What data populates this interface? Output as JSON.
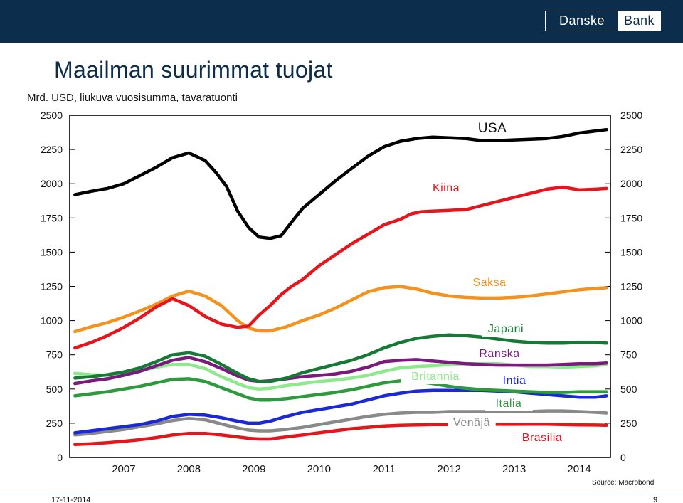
{
  "logo": {
    "left": "Danske",
    "right": "Bank"
  },
  "page_title": "Maailman suurimmat tuojat",
  "source": "Source: Macrobond",
  "footer": {
    "date": "17-11-2014",
    "page_number": "9"
  },
  "colors": {
    "background": "#ffffff",
    "header": "#0c2d4c",
    "USA": "#000000",
    "Kiina": "#e8141b",
    "Saksa": "#f5921e",
    "Japani": "#157a35",
    "Ranska": "#7b1a7d",
    "Britannia": "#8ee88c",
    "Intia": "#1a28d6",
    "Italia": "#2e9a3e",
    "Venäjä": "#898989",
    "Brasilia": "#e8141b"
  },
  "chart_data": {
    "type": "line",
    "title": "Mrd. USD, liukuva vuosisumma, tavaratuonti",
    "xlabel": "",
    "ylabel": "",
    "x_range": [
      2006.42,
      2014.73
    ],
    "ylim": [
      0,
      2500
    ],
    "y_ticks": [
      0,
      250,
      500,
      750,
      1000,
      1250,
      1500,
      1750,
      2000,
      2250,
      2500
    ],
    "y_tick_labels": [
      "0",
      "250",
      "500",
      "750",
      "1000",
      "1250",
      "1500",
      "1750",
      "2000",
      "2250",
      "2500"
    ],
    "x_ticks": [
      2007.25,
      2008.25,
      2009.25,
      2010.25,
      2011.25,
      2012.25,
      2013.25,
      2014.25
    ],
    "x_tick_labels": [
      "2007",
      "2008",
      "2009",
      "2010",
      "2011",
      "2012",
      "2013",
      "2014"
    ],
    "grid": false,
    "series": [
      {
        "name": "USA",
        "label": "USA",
        "x": [
          2006.5,
          2006.75,
          2007.0,
          2007.25,
          2007.5,
          2007.75,
          2008.0,
          2008.25,
          2008.5,
          2008.67,
          2008.83,
          2009.0,
          2009.17,
          2009.33,
          2009.5,
          2009.67,
          2009.83,
          2010.0,
          2010.25,
          2010.5,
          2010.75,
          2011.0,
          2011.25,
          2011.5,
          2011.75,
          2012.0,
          2012.25,
          2012.5,
          2012.75,
          2013.0,
          2013.25,
          2013.5,
          2013.75,
          2014.0,
          2014.25,
          2014.5,
          2014.67
        ],
        "values": [
          1920,
          1945,
          1965,
          2000,
          2060,
          2120,
          2190,
          2225,
          2170,
          2080,
          1980,
          1800,
          1680,
          1610,
          1600,
          1620,
          1720,
          1820,
          1920,
          2020,
          2110,
          2200,
          2270,
          2310,
          2330,
          2340,
          2335,
          2330,
          2315,
          2315,
          2320,
          2325,
          2330,
          2345,
          2370,
          2385,
          2395
        ]
      },
      {
        "name": "Kiina",
        "label": "Kiina",
        "x": [
          2006.5,
          2006.75,
          2007.0,
          2007.25,
          2007.5,
          2007.75,
          2008.0,
          2008.25,
          2008.5,
          2008.75,
          2009.0,
          2009.17,
          2009.33,
          2009.5,
          2009.67,
          2009.83,
          2010.0,
          2010.25,
          2010.5,
          2010.75,
          2011.0,
          2011.25,
          2011.5,
          2011.67,
          2011.83,
          2012.0,
          2012.25,
          2012.5,
          2012.75,
          2013.0,
          2013.25,
          2013.5,
          2013.75,
          2014.0,
          2014.25,
          2014.5,
          2014.67
        ],
        "values": [
          800,
          840,
          890,
          950,
          1020,
          1100,
          1160,
          1110,
          1030,
          975,
          950,
          960,
          1040,
          1110,
          1190,
          1250,
          1300,
          1400,
          1480,
          1560,
          1630,
          1700,
          1740,
          1780,
          1795,
          1800,
          1805,
          1810,
          1840,
          1870,
          1900,
          1930,
          1960,
          1975,
          1955,
          1960,
          1965
        ]
      },
      {
        "name": "Saksa",
        "label": "Saksa",
        "x": [
          2006.5,
          2006.75,
          2007.0,
          2007.25,
          2007.5,
          2007.75,
          2008.0,
          2008.25,
          2008.5,
          2008.75,
          2009.0,
          2009.17,
          2009.33,
          2009.5,
          2009.75,
          2010.0,
          2010.25,
          2010.5,
          2010.75,
          2011.0,
          2011.25,
          2011.5,
          2011.75,
          2012.0,
          2012.25,
          2012.5,
          2012.75,
          2013.0,
          2013.25,
          2013.5,
          2013.75,
          2014.0,
          2014.25,
          2014.5,
          2014.67
        ],
        "values": [
          920,
          955,
          985,
          1025,
          1070,
          1120,
          1180,
          1215,
          1180,
          1110,
          1000,
          945,
          925,
          925,
          955,
          1000,
          1040,
          1090,
          1150,
          1210,
          1240,
          1250,
          1230,
          1200,
          1180,
          1170,
          1165,
          1165,
          1170,
          1180,
          1195,
          1210,
          1225,
          1235,
          1240
        ]
      },
      {
        "name": "Japani",
        "label": "Japani",
        "x": [
          2006.5,
          2006.75,
          2007.0,
          2007.25,
          2007.5,
          2007.75,
          2008.0,
          2008.25,
          2008.5,
          2008.75,
          2009.0,
          2009.17,
          2009.33,
          2009.5,
          2009.75,
          2010.0,
          2010.25,
          2010.5,
          2010.75,
          2011.0,
          2011.25,
          2011.5,
          2011.75,
          2012.0,
          2012.25,
          2012.5,
          2012.75,
          2013.0,
          2013.25,
          2013.5,
          2013.75,
          2014.0,
          2014.25,
          2014.5,
          2014.67
        ],
        "values": [
          580,
          590,
          605,
          625,
          655,
          700,
          750,
          765,
          740,
          680,
          615,
          575,
          555,
          555,
          580,
          620,
          650,
          680,
          710,
          750,
          800,
          840,
          870,
          885,
          895,
          890,
          880,
          865,
          850,
          840,
          835,
          835,
          840,
          840,
          835
        ]
      },
      {
        "name": "Ranska",
        "label": "Ranska",
        "x": [
          2006.5,
          2006.75,
          2007.0,
          2007.25,
          2007.5,
          2007.75,
          2008.0,
          2008.25,
          2008.5,
          2008.75,
          2009.0,
          2009.17,
          2009.33,
          2009.5,
          2009.75,
          2010.0,
          2010.25,
          2010.5,
          2010.75,
          2011.0,
          2011.25,
          2011.5,
          2011.75,
          2012.0,
          2012.25,
          2012.5,
          2012.75,
          2013.0,
          2013.25,
          2013.5,
          2013.75,
          2014.0,
          2014.25,
          2014.5,
          2014.67
        ],
        "values": [
          540,
          560,
          575,
          600,
          630,
          670,
          710,
          730,
          700,
          650,
          595,
          565,
          555,
          560,
          575,
          590,
          600,
          610,
          630,
          660,
          700,
          710,
          715,
          705,
          695,
          685,
          680,
          675,
          675,
          675,
          675,
          680,
          685,
          685,
          690
        ]
      },
      {
        "name": "Britannia",
        "label": "Britannia",
        "x": [
          2006.5,
          2006.75,
          2007.0,
          2007.25,
          2007.5,
          2007.75,
          2008.0,
          2008.25,
          2008.5,
          2008.75,
          2009.0,
          2009.17,
          2009.33,
          2009.5,
          2009.75,
          2010.0,
          2010.25,
          2010.5,
          2010.75,
          2011.0,
          2011.25,
          2011.5,
          2011.75,
          2012.0,
          2012.25,
          2012.5,
          2012.75,
          2013.0,
          2013.25,
          2013.5,
          2013.75,
          2014.0,
          2014.25,
          2014.5,
          2014.67
        ],
        "values": [
          615,
          605,
          600,
          610,
          630,
          660,
          680,
          680,
          650,
          590,
          540,
          510,
          500,
          505,
          525,
          540,
          555,
          565,
          580,
          600,
          630,
          655,
          665,
          670,
          680,
          685,
          685,
          685,
          675,
          665,
          665,
          660,
          665,
          670,
          680
        ]
      },
      {
        "name": "Intia",
        "label": "Intia",
        "x": [
          2006.5,
          2006.75,
          2007.0,
          2007.25,
          2007.5,
          2007.75,
          2008.0,
          2008.25,
          2008.5,
          2008.75,
          2009.0,
          2009.17,
          2009.33,
          2009.5,
          2009.75,
          2010.0,
          2010.25,
          2010.5,
          2010.75,
          2011.0,
          2011.25,
          2011.5,
          2011.75,
          2012.0,
          2012.25,
          2012.5,
          2012.75,
          2013.0,
          2013.25,
          2013.5,
          2013.75,
          2014.0,
          2014.25,
          2014.5,
          2014.67
        ],
        "values": [
          180,
          195,
          210,
          225,
          240,
          265,
          300,
          315,
          310,
          290,
          265,
          250,
          250,
          265,
          300,
          330,
          350,
          370,
          390,
          420,
          450,
          470,
          485,
          490,
          490,
          490,
          490,
          485,
          480,
          470,
          460,
          450,
          440,
          440,
          450
        ]
      },
      {
        "name": "Italia",
        "label": "Italia",
        "x": [
          2006.5,
          2006.75,
          2007.0,
          2007.25,
          2007.5,
          2007.75,
          2008.0,
          2008.25,
          2008.5,
          2008.75,
          2009.0,
          2009.17,
          2009.33,
          2009.5,
          2009.75,
          2010.0,
          2010.25,
          2010.5,
          2010.75,
          2011.0,
          2011.25,
          2011.5,
          2011.75,
          2012.0,
          2012.25,
          2012.5,
          2012.75,
          2013.0,
          2013.25,
          2013.5,
          2013.75,
          2014.0,
          2014.25,
          2014.5,
          2014.67
        ],
        "values": [
          450,
          465,
          480,
          500,
          520,
          545,
          570,
          575,
          555,
          510,
          465,
          435,
          420,
          420,
          430,
          445,
          460,
          475,
          495,
          520,
          545,
          560,
          555,
          540,
          520,
          505,
          495,
          490,
          485,
          480,
          475,
          475,
          480,
          480,
          480
        ]
      },
      {
        "name": "Venäjä",
        "label": "Venäjä",
        "x": [
          2006.5,
          2006.75,
          2007.0,
          2007.25,
          2007.5,
          2007.75,
          2008.0,
          2008.25,
          2008.5,
          2008.75,
          2009.0,
          2009.17,
          2009.33,
          2009.5,
          2009.75,
          2010.0,
          2010.25,
          2010.5,
          2010.75,
          2011.0,
          2011.25,
          2011.5,
          2011.75,
          2012.0,
          2012.25,
          2012.5,
          2012.75,
          2013.0,
          2013.25,
          2013.5,
          2013.75,
          2014.0,
          2014.25,
          2014.5,
          2014.67
        ],
        "values": [
          165,
          175,
          190,
          205,
          225,
          245,
          270,
          285,
          275,
          245,
          215,
          200,
          195,
          195,
          205,
          220,
          240,
          260,
          280,
          300,
          315,
          325,
          330,
          330,
          335,
          335,
          335,
          335,
          335,
          335,
          340,
          340,
          335,
          330,
          325
        ]
      },
      {
        "name": "Brasilia",
        "label": "Brasilia",
        "x": [
          2006.5,
          2006.75,
          2007.0,
          2007.25,
          2007.5,
          2007.75,
          2008.0,
          2008.25,
          2008.5,
          2008.75,
          2009.0,
          2009.17,
          2009.33,
          2009.5,
          2009.75,
          2010.0,
          2010.25,
          2010.5,
          2010.75,
          2011.0,
          2011.25,
          2011.5,
          2011.75,
          2012.0,
          2012.25,
          2012.5,
          2012.75,
          2013.0,
          2013.25,
          2013.5,
          2013.75,
          2014.0,
          2014.25,
          2014.5,
          2014.67
        ],
        "values": [
          95,
          100,
          108,
          118,
          130,
          145,
          165,
          175,
          175,
          165,
          150,
          140,
          135,
          135,
          150,
          165,
          180,
          195,
          210,
          220,
          230,
          235,
          238,
          240,
          240,
          240,
          242,
          242,
          242,
          243,
          243,
          240,
          238,
          237,
          235
        ]
      }
    ]
  }
}
